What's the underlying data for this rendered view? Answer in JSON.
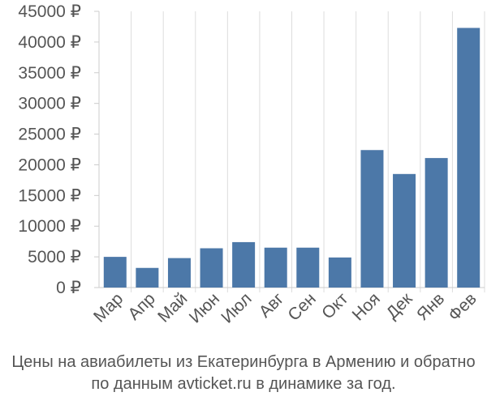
{
  "chart_data": {
    "type": "bar",
    "categories": [
      "Мар",
      "Апр",
      "Май",
      "Июн",
      "Июл",
      "Авг",
      "Сен",
      "Окт",
      "Ноя",
      "Дек",
      "Янв",
      "Фев"
    ],
    "values": [
      5000,
      3200,
      4800,
      6400,
      7400,
      6500,
      6500,
      4900,
      22400,
      18500,
      21100,
      42300
    ],
    "title": "",
    "xlabel": "",
    "ylabel": "",
    "ylim": [
      0,
      45000
    ],
    "yticks": [
      0,
      5000,
      10000,
      15000,
      20000,
      25000,
      30000,
      35000,
      40000,
      45000
    ],
    "ytick_labels": [
      "0 ₽",
      "5000 ₽",
      "10000 ₽",
      "15000 ₽",
      "20000 ₽",
      "25000 ₽",
      "30000 ₽",
      "35000 ₽",
      "40000 ₽",
      "45000 ₽"
    ],
    "grid": "vertical",
    "bar_color": "#4c78a8"
  },
  "caption": {
    "line1": "Цены на авиабилеты из Екатеринбурга в Армению и обратно",
    "line2": "по данным avticket.ru в динамике за год."
  }
}
